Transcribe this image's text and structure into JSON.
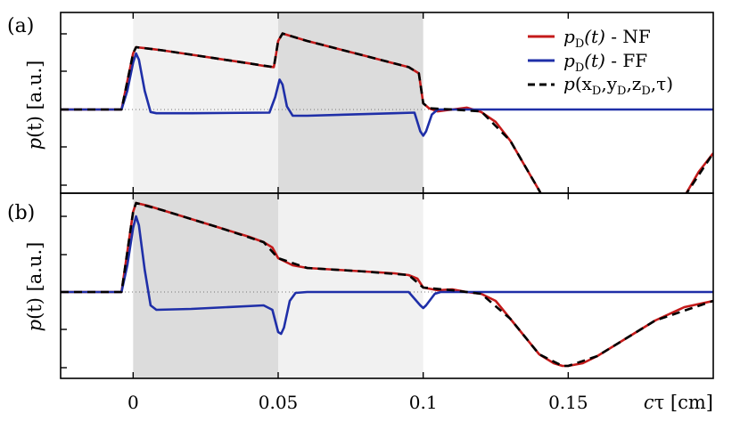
{
  "chart_data": {
    "type": "line",
    "xlabel_var": "c",
    "xlabel_sym": "τ",
    "xlabel_unit": " [cm]",
    "xlim": [
      -0.025,
      0.2
    ],
    "x_ticks": [
      0,
      0.05,
      0.1,
      0.15
    ],
    "x_tick_labels": [
      "0",
      "0.05",
      "0.1",
      "0.15"
    ],
    "legend_position": "top-right",
    "legend": [
      {
        "main": "p",
        "sub": "D",
        "arg": "(t)",
        "suffix": " - NF",
        "color": "#c41a1a",
        "dashed": false
      },
      {
        "main": "p",
        "sub": "D",
        "arg": "(t)",
        "suffix": " - FF",
        "color": "#1f2fa8",
        "dashed": false
      },
      {
        "main": "p",
        "prefix": "(x",
        "sub1": "D",
        "mid1": ",y",
        "sub2": "D",
        "mid2": ",z",
        "sub3": "D",
        "tail": ",τ)",
        "color": "#000000",
        "dashed": true
      }
    ],
    "colors": {
      "nf": "#c41a1a",
      "ff": "#1f2fa8",
      "analytic": "#000000",
      "shade_dark": "#dcdcdc",
      "shade_light": "#f1f1f1"
    },
    "ylabel_main": "p",
    "ylabel_arg": "(t)",
    "ylabel_unit": " [a.u.]",
    "panels": [
      {
        "label": "(a)",
        "shade_regions": [
          {
            "x": [
              0,
              0.05
            ],
            "shade": "light"
          },
          {
            "x": [
              0.05,
              0.1
            ],
            "shade": "dark"
          }
        ],
        "nf": [
          [
            -0.025,
            0
          ],
          [
            -0.004,
            0
          ],
          [
            0,
            0.9
          ],
          [
            0.001,
            1.0
          ],
          [
            0.005,
            0.98
          ],
          [
            0.01,
            0.95
          ],
          [
            0.02,
            0.88
          ],
          [
            0.03,
            0.81
          ],
          [
            0.04,
            0.74
          ],
          [
            0.045,
            0.7
          ],
          [
            0.0485,
            0.68
          ],
          [
            0.049,
            0.8
          ],
          [
            0.05,
            1.1
          ],
          [
            0.0515,
            1.22
          ],
          [
            0.055,
            1.17
          ],
          [
            0.06,
            1.1
          ],
          [
            0.07,
            0.98
          ],
          [
            0.08,
            0.86
          ],
          [
            0.09,
            0.74
          ],
          [
            0.095,
            0.68
          ],
          [
            0.0985,
            0.58
          ],
          [
            0.1,
            0.1
          ],
          [
            0.102,
            0.02
          ],
          [
            0.105,
            -0.03
          ],
          [
            0.11,
            0
          ],
          [
            0.115,
            0.03
          ],
          [
            0.12,
            -0.04
          ],
          [
            0.125,
            -0.2
          ],
          [
            0.13,
            -0.5
          ],
          [
            0.135,
            -0.9
          ],
          [
            0.14,
            -1.3
          ],
          [
            0.145,
            -1.75
          ],
          [
            0.15,
            -2.2
          ],
          [
            0.155,
            -2.6
          ],
          [
            0.16,
            -3
          ],
          [
            0.165,
            -3.3
          ],
          [
            0.17,
            -3.3
          ],
          [
            0.175,
            -2.9
          ],
          [
            0.18,
            -2.4
          ],
          [
            0.185,
            -1.9
          ],
          [
            0.19,
            -1.4
          ],
          [
            0.195,
            -1.0
          ],
          [
            0.2,
            -0.7
          ]
        ],
        "ff": [
          [
            -0.025,
            0
          ],
          [
            -0.004,
            0
          ],
          [
            -0.002,
            0.3
          ],
          [
            0,
            0.75
          ],
          [
            0.001,
            0.9
          ],
          [
            0.002,
            0.8
          ],
          [
            0.004,
            0.3
          ],
          [
            0.006,
            -0.04
          ],
          [
            0.008,
            -0.06
          ],
          [
            0.02,
            -0.06
          ],
          [
            0.047,
            -0.05
          ],
          [
            0.049,
            0.2
          ],
          [
            0.0505,
            0.48
          ],
          [
            0.0515,
            0.4
          ],
          [
            0.053,
            0.05
          ],
          [
            0.055,
            -0.1
          ],
          [
            0.06,
            -0.1
          ],
          [
            0.09,
            -0.06
          ],
          [
            0.097,
            -0.05
          ],
          [
            0.099,
            -0.35
          ],
          [
            0.1,
            -0.42
          ],
          [
            0.101,
            -0.35
          ],
          [
            0.103,
            -0.08
          ],
          [
            0.105,
            0
          ],
          [
            0.2,
            0
          ]
        ],
        "analytic": [
          [
            -0.025,
            0
          ],
          [
            -0.004,
            0
          ],
          [
            0,
            0.9
          ],
          [
            0.001,
            1.0
          ],
          [
            0.01,
            0.95
          ],
          [
            0.03,
            0.81
          ],
          [
            0.0485,
            0.68
          ],
          [
            0.05,
            1.1
          ],
          [
            0.0515,
            1.22
          ],
          [
            0.06,
            1.1
          ],
          [
            0.08,
            0.86
          ],
          [
            0.095,
            0.68
          ],
          [
            0.0985,
            0.58
          ],
          [
            0.1,
            0.1
          ],
          [
            0.102,
            0.02
          ],
          [
            0.11,
            0
          ],
          [
            0.12,
            -0.03
          ],
          [
            0.13,
            -0.5
          ],
          [
            0.14,
            -1.3
          ],
          [
            0.15,
            -2.2
          ],
          [
            0.16,
            -3
          ],
          [
            0.165,
            -3.3
          ],
          [
            0.17,
            -3.3
          ],
          [
            0.18,
            -2.4
          ],
          [
            0.19,
            -1.4
          ],
          [
            0.2,
            -0.7
          ]
        ]
      },
      {
        "label": "(b)",
        "shade_regions": [
          {
            "x": [
              0,
              0.05
            ],
            "shade": "dark"
          },
          {
            "x": [
              0.05,
              0.1
            ],
            "shade": "light"
          }
        ],
        "nf": [
          [
            -0.025,
            0
          ],
          [
            -0.004,
            0
          ],
          [
            0,
            0.9
          ],
          [
            0.001,
            1.0
          ],
          [
            0.005,
            0.97
          ],
          [
            0.01,
            0.92
          ],
          [
            0.02,
            0.82
          ],
          [
            0.03,
            0.72
          ],
          [
            0.04,
            0.62
          ],
          [
            0.045,
            0.56
          ],
          [
            0.048,
            0.5
          ],
          [
            0.05,
            0.38
          ],
          [
            0.055,
            0.3
          ],
          [
            0.06,
            0.27
          ],
          [
            0.07,
            0.25
          ],
          [
            0.08,
            0.23
          ],
          [
            0.09,
            0.21
          ],
          [
            0.095,
            0.19
          ],
          [
            0.098,
            0.15
          ],
          [
            0.1,
            0.05
          ],
          [
            0.105,
            0.02
          ],
          [
            0.11,
            0.03
          ],
          [
            0.115,
            0
          ],
          [
            0.12,
            -0.02
          ],
          [
            0.125,
            -0.1
          ],
          [
            0.13,
            -0.3
          ],
          [
            0.135,
            -0.5
          ],
          [
            0.14,
            -0.7
          ],
          [
            0.145,
            -0.8
          ],
          [
            0.148,
            -0.83
          ],
          [
            0.15,
            -0.83
          ],
          [
            0.155,
            -0.8
          ],
          [
            0.16,
            -0.72
          ],
          [
            0.17,
            -0.52
          ],
          [
            0.18,
            -0.32
          ],
          [
            0.19,
            -0.17
          ],
          [
            0.2,
            -0.1
          ]
        ],
        "ff": [
          [
            -0.025,
            0
          ],
          [
            -0.004,
            0
          ],
          [
            -0.002,
            0.3
          ],
          [
            0,
            0.72
          ],
          [
            0.001,
            0.85
          ],
          [
            0.002,
            0.75
          ],
          [
            0.004,
            0.25
          ],
          [
            0.006,
            -0.15
          ],
          [
            0.008,
            -0.2
          ],
          [
            0.02,
            -0.19
          ],
          [
            0.045,
            -0.15
          ],
          [
            0.048,
            -0.2
          ],
          [
            0.05,
            -0.45
          ],
          [
            0.051,
            -0.47
          ],
          [
            0.052,
            -0.4
          ],
          [
            0.054,
            -0.1
          ],
          [
            0.056,
            -0.01
          ],
          [
            0.06,
            0
          ],
          [
            0.095,
            0
          ],
          [
            0.099,
            -0.15
          ],
          [
            0.1,
            -0.18
          ],
          [
            0.101,
            -0.15
          ],
          [
            0.104,
            -0.02
          ],
          [
            0.106,
            0
          ],
          [
            0.2,
            0
          ]
        ],
        "analytic": [
          [
            -0.025,
            0
          ],
          [
            -0.004,
            0
          ],
          [
            0,
            0.9
          ],
          [
            0.001,
            1.0
          ],
          [
            0.01,
            0.92
          ],
          [
            0.03,
            0.72
          ],
          [
            0.045,
            0.56
          ],
          [
            0.05,
            0.38
          ],
          [
            0.06,
            0.27
          ],
          [
            0.08,
            0.23
          ],
          [
            0.095,
            0.19
          ],
          [
            0.1,
            0.05
          ],
          [
            0.11,
            0.02
          ],
          [
            0.12,
            -0.02
          ],
          [
            0.13,
            -0.3
          ],
          [
            0.14,
            -0.7
          ],
          [
            0.148,
            -0.83
          ],
          [
            0.15,
            -0.83
          ],
          [
            0.16,
            -0.72
          ],
          [
            0.17,
            -0.52
          ],
          [
            0.18,
            -0.32
          ],
          [
            0.2,
            -0.1
          ]
        ]
      }
    ]
  }
}
